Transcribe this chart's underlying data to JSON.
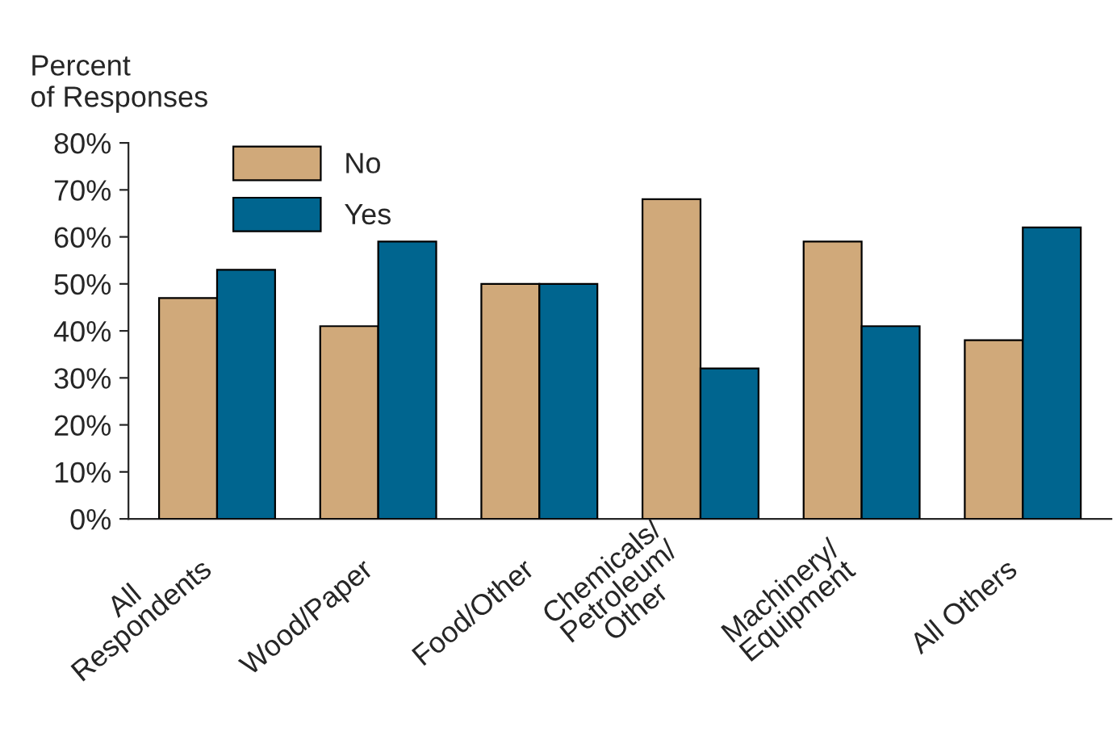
{
  "chart_data": {
    "type": "bar",
    "ylabel": "Percent\nof Responses",
    "categories": [
      "All\nRespondents",
      "Wood/Paper",
      "Food/Other",
      "Chemicals/\nPetroleum/\nOther",
      "Machinery/\nEquipment",
      "All Others"
    ],
    "series": [
      {
        "name": "No",
        "color": "#d0a97a",
        "values": [
          47,
          41,
          50,
          68,
          59,
          38
        ]
      },
      {
        "name": "Yes",
        "color": "#00658f",
        "values": [
          53,
          59,
          50,
          32,
          41,
          62
        ]
      }
    ],
    "ylim": [
      0,
      80
    ],
    "yticks": [
      {
        "value": 0,
        "label": "0%"
      },
      {
        "value": 10,
        "label": "10%"
      },
      {
        "value": 20,
        "label": "20%"
      },
      {
        "value": 30,
        "label": "30%"
      },
      {
        "value": 40,
        "label": "40%"
      },
      {
        "value": 50,
        "label": "50%"
      },
      {
        "value": 60,
        "label": "60%"
      },
      {
        "value": 70,
        "label": "70%"
      },
      {
        "value": 80,
        "label": "80%"
      }
    ],
    "grid": false,
    "legend": "top left"
  }
}
